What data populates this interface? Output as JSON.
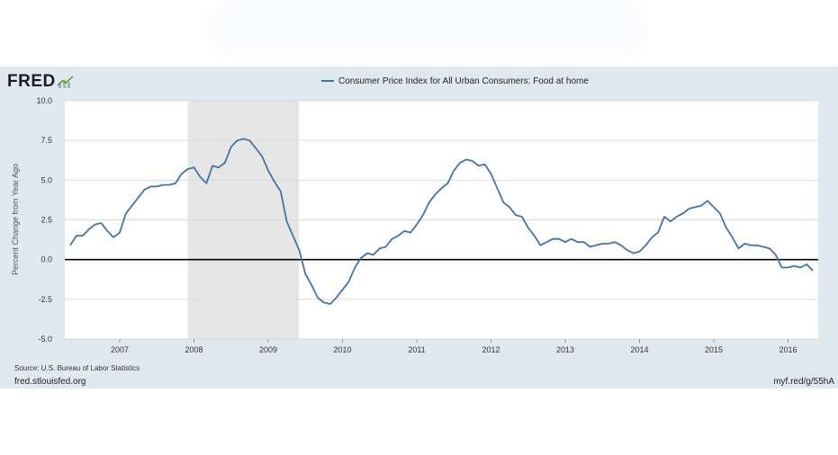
{
  "header": {
    "logo_text": "FRED",
    "logo_icon": "chart-line-icon"
  },
  "footer": {
    "source": "Source: U.S. Bureau of Labor Statistics",
    "site": "fred.stlouisfed.org",
    "shortlink": "myf.red/g/55hA"
  },
  "colors": {
    "series": "#4572a7",
    "panel_bg": "#e1e9f0",
    "recession": "#e6e6e6",
    "zero_line": "#000000"
  },
  "chart_data": {
    "type": "line",
    "title": "",
    "ylabel": "Percent Change from Year Ago",
    "xlabel": "",
    "ylim": [
      -5,
      10
    ],
    "yticks": [
      -5.0,
      -2.5,
      0.0,
      2.5,
      5.0,
      7.5,
      10.0
    ],
    "ytick_labels": [
      "-5.0",
      "-2.5",
      "0.0",
      "2.5",
      "5.0",
      "7.5",
      "10.0"
    ],
    "xlim": [
      "2006-05",
      "2016-05"
    ],
    "xtick_labels": [
      "2007",
      "2008",
      "2009",
      "2010",
      "2011",
      "2012",
      "2013",
      "2014",
      "2015",
      "2016"
    ],
    "grid": true,
    "legend_position": "top-center",
    "recessions": [
      {
        "start": "2007-12",
        "end": "2009-06"
      }
    ],
    "series": [
      {
        "name": "Consumer Price Index for All Urban Consumers: Food at home",
        "x": [
          "2006-05",
          "2006-06",
          "2006-07",
          "2006-08",
          "2006-09",
          "2006-10",
          "2006-11",
          "2006-12",
          "2007-01",
          "2007-02",
          "2007-03",
          "2007-04",
          "2007-05",
          "2007-06",
          "2007-07",
          "2007-08",
          "2007-09",
          "2007-10",
          "2007-11",
          "2007-12",
          "2008-01",
          "2008-02",
          "2008-03",
          "2008-04",
          "2008-05",
          "2008-06",
          "2008-07",
          "2008-08",
          "2008-09",
          "2008-10",
          "2008-11",
          "2008-12",
          "2009-01",
          "2009-02",
          "2009-03",
          "2009-04",
          "2009-05",
          "2009-06",
          "2009-07",
          "2009-08",
          "2009-09",
          "2009-10",
          "2009-11",
          "2009-12",
          "2010-01",
          "2010-02",
          "2010-03",
          "2010-04",
          "2010-05",
          "2010-06",
          "2010-07",
          "2010-08",
          "2010-09",
          "2010-10",
          "2010-11",
          "2010-12",
          "2011-01",
          "2011-02",
          "2011-03",
          "2011-04",
          "2011-05",
          "2011-06",
          "2011-07",
          "2011-08",
          "2011-09",
          "2011-10",
          "2011-11",
          "2011-12",
          "2012-01",
          "2012-02",
          "2012-03",
          "2012-04",
          "2012-05",
          "2012-06",
          "2012-07",
          "2012-08",
          "2012-09",
          "2012-10",
          "2012-11",
          "2012-12",
          "2013-01",
          "2013-02",
          "2013-03",
          "2013-04",
          "2013-05",
          "2013-06",
          "2013-07",
          "2013-08",
          "2013-09",
          "2013-10",
          "2013-11",
          "2013-12",
          "2014-01",
          "2014-02",
          "2014-03",
          "2014-04",
          "2014-05",
          "2014-06",
          "2014-07",
          "2014-08",
          "2014-09",
          "2014-10",
          "2014-11",
          "2014-12",
          "2015-01",
          "2015-02",
          "2015-03",
          "2015-04",
          "2015-05",
          "2015-06",
          "2015-07",
          "2015-08",
          "2015-09",
          "2015-10",
          "2015-11",
          "2015-12",
          "2016-01",
          "2016-02",
          "2016-03",
          "2016-04",
          "2016-05"
        ],
        "values": [
          0.9,
          1.5,
          1.5,
          1.9,
          2.2,
          2.3,
          1.8,
          1.4,
          1.7,
          2.9,
          3.4,
          3.9,
          4.4,
          4.6,
          4.6,
          4.7,
          4.7,
          4.8,
          5.4,
          5.7,
          5.8,
          5.2,
          4.8,
          5.9,
          5.8,
          6.1,
          7.1,
          7.5,
          7.6,
          7.5,
          7.0,
          6.5,
          5.6,
          4.9,
          4.3,
          2.4,
          1.5,
          0.6,
          -0.9,
          -1.6,
          -2.4,
          -2.7,
          -2.8,
          -2.4,
          -1.9,
          -1.4,
          -0.5,
          0.1,
          0.4,
          0.3,
          0.7,
          0.8,
          1.3,
          1.5,
          1.8,
          1.7,
          2.2,
          2.8,
          3.6,
          4.1,
          4.5,
          4.8,
          5.6,
          6.1,
          6.3,
          6.2,
          5.9,
          6.0,
          5.4,
          4.5,
          3.6,
          3.3,
          2.8,
          2.7,
          2.0,
          1.5,
          0.9,
          1.1,
          1.3,
          1.3,
          1.1,
          1.3,
          1.1,
          1.1,
          0.8,
          0.9,
          1.0,
          1.0,
          1.1,
          0.9,
          0.6,
          0.4,
          0.5,
          0.9,
          1.4,
          1.7,
          2.7,
          2.4,
          2.7,
          2.9,
          3.2,
          3.3,
          3.4,
          3.7,
          3.3,
          2.9,
          2.0,
          1.4,
          0.7,
          1.0,
          0.9,
          0.9,
          0.8,
          0.7,
          0.3,
          -0.5,
          -0.5,
          -0.4,
          -0.5,
          -0.3,
          -0.7
        ]
      }
    ]
  }
}
